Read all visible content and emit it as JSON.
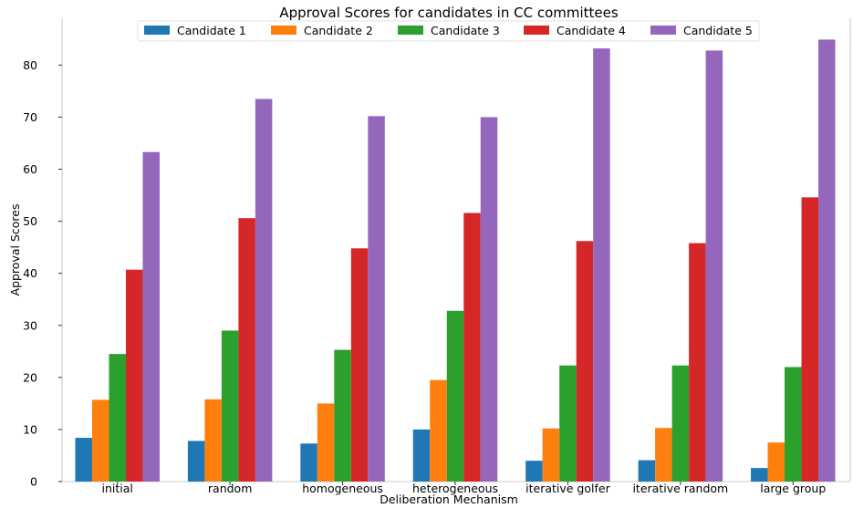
{
  "chart_data": {
    "type": "bar",
    "title": "Approval Scores for candidates in CC committees",
    "xlabel": "Deliberation Mechanism",
    "ylabel": "Approval Scores",
    "ylim": [
      0,
      89
    ],
    "yticks": [
      0,
      10,
      20,
      30,
      40,
      50,
      60,
      70,
      80
    ],
    "grid": false,
    "legend_position": "top-center",
    "categories": [
      "initial",
      "random",
      "homogeneous",
      "heterogeneous",
      "iterative golfer",
      "iterative random",
      "large group"
    ],
    "series": [
      {
        "name": "Candidate 1",
        "color": "#1f77b4",
        "values": [
          8.4,
          7.8,
          7.3,
          10.0,
          4.0,
          4.1,
          2.6
        ]
      },
      {
        "name": "Candidate 2",
        "color": "#ff7f0e",
        "values": [
          15.7,
          15.8,
          15.0,
          19.5,
          10.2,
          10.3,
          7.5
        ]
      },
      {
        "name": "Candidate 3",
        "color": "#2ca02c",
        "values": [
          24.5,
          29.0,
          25.3,
          32.8,
          22.3,
          22.3,
          22.0
        ]
      },
      {
        "name": "Candidate 4",
        "color": "#d62728",
        "values": [
          40.7,
          50.6,
          44.8,
          51.6,
          46.2,
          45.8,
          54.6
        ]
      },
      {
        "name": "Candidate 5",
        "color": "#9467bd",
        "values": [
          63.3,
          73.5,
          70.2,
          70.0,
          83.2,
          82.8,
          84.9
        ]
      }
    ]
  }
}
